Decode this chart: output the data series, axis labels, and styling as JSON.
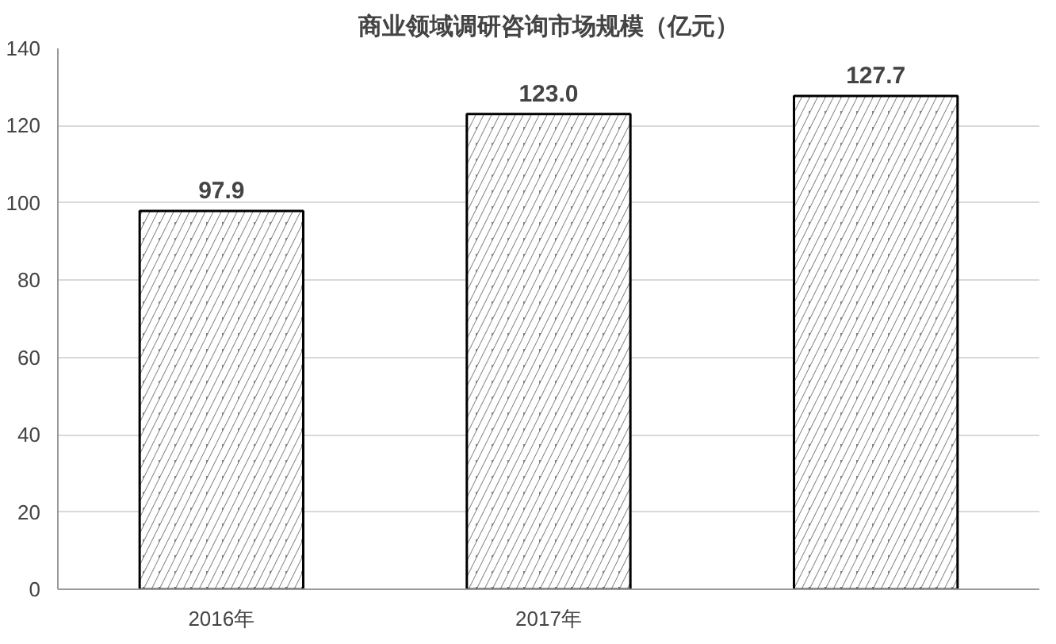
{
  "chart_data": {
    "type": "bar",
    "title": "商业领域调研咨询市场规模（亿元）",
    "categories": [
      "2016年",
      "2017年",
      null
    ],
    "values": [
      97.9,
      123.0,
      127.7
    ],
    "value_labels": [
      "97.9",
      "123.0",
      "127.7"
    ],
    "color": "#808080",
    "ylim": [
      0,
      140
    ],
    "yticks": [
      0,
      20,
      40,
      60,
      80,
      100,
      120,
      140
    ],
    "grid": "y"
  }
}
